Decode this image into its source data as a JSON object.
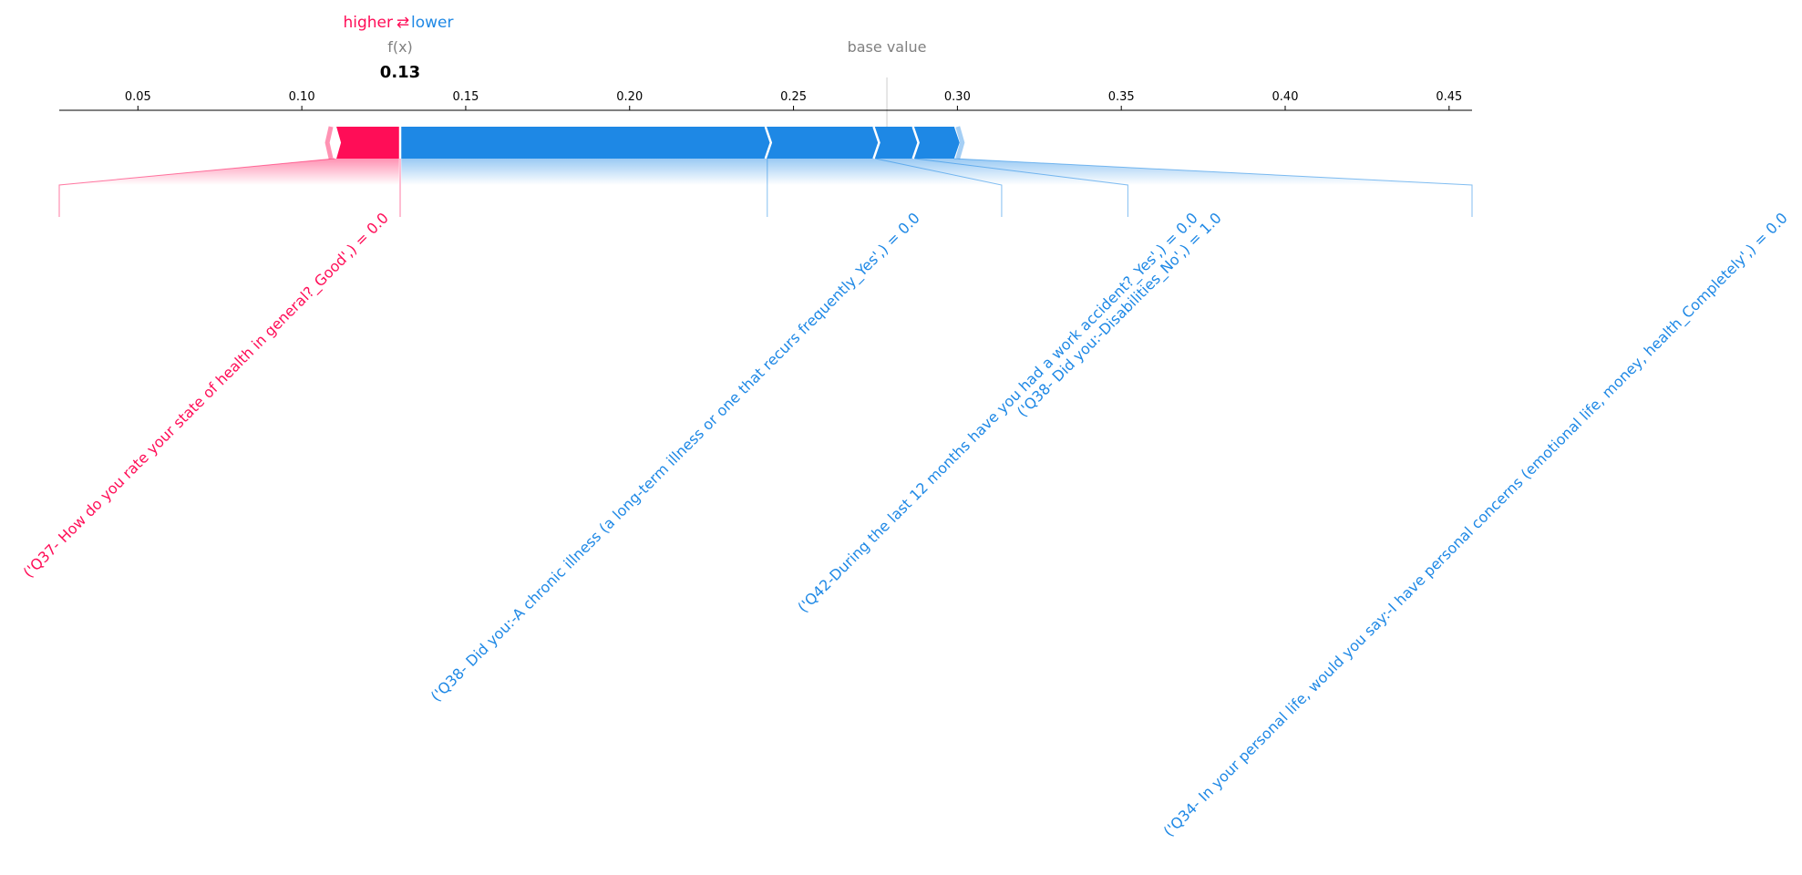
{
  "chart_data": {
    "type": "force",
    "legend": {
      "higher": "higher",
      "arrow": "⇄",
      "lower": "lower"
    },
    "fx_label": "f(x)",
    "fx_value": 0.13,
    "fx_value_text": "0.13",
    "base_value_label": "base value",
    "base_value": 0.2785,
    "xlim": [
      0.026,
      0.457
    ],
    "ticks": [
      0.05,
      0.1,
      0.15,
      0.2,
      0.25,
      0.3,
      0.35,
      0.4,
      0.45
    ],
    "tick_labels": [
      "0.05",
      "0.10",
      "0.15",
      "0.20",
      "0.25",
      "0.30",
      "0.35",
      "0.40",
      "0.45"
    ],
    "features_higher": [
      {
        "label": "('Q37- How do you rate your state of health in general?_Good',) = 0.0",
        "start": 0.11,
        "end": 0.13
      }
    ],
    "features_lower": [
      {
        "label": "('Q38- Did you:-A chronic illness (a long-term illness or one that recurs frequently_Yes',) = 0.0",
        "start": 0.13,
        "end": 0.242
      },
      {
        "label": "('Q42-During the last 12 months have you had a work accident?_Yes',) = 0.0",
        "start": 0.242,
        "end": 0.275
      },
      {
        "label": "('Q38- Did you:-Disabilities_No',) = 1.0",
        "start": 0.275,
        "end": 0.287
      },
      {
        "label": "('Q34- In your personal life, would you say:-I have personal concerns (emotional life, money, health_Completely',) = 0.0",
        "start": 0.287,
        "end": 0.299
      }
    ],
    "colors": {
      "positive": "#ff0d57",
      "negative": "#1e88e5",
      "axis": "#000000",
      "muted": "#808080"
    }
  }
}
